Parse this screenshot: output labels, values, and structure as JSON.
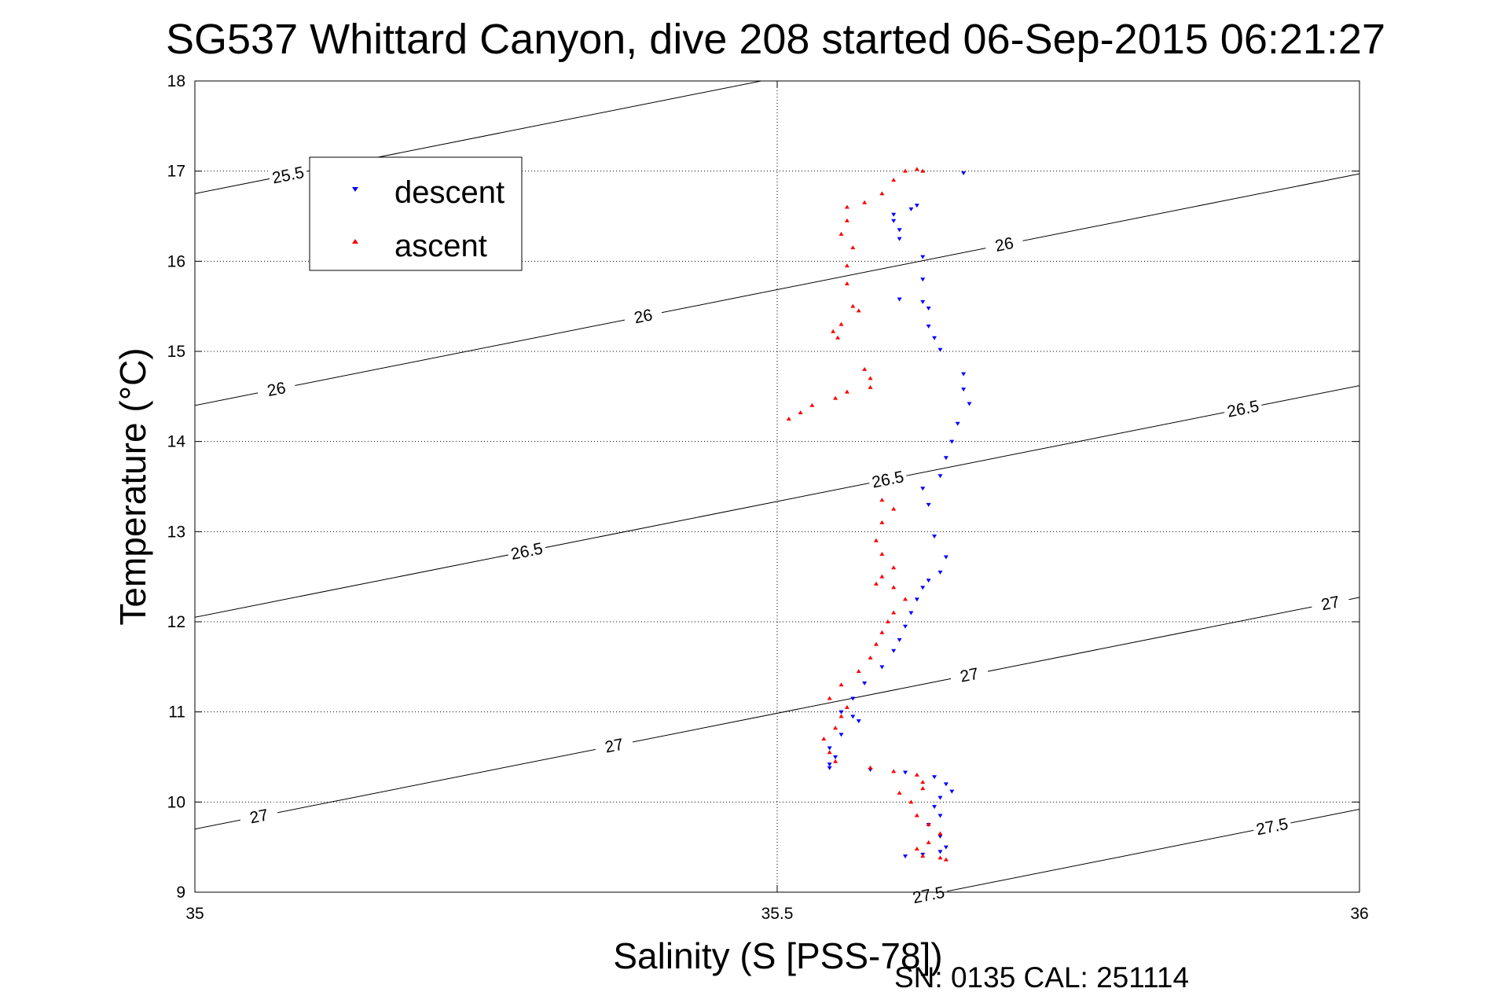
{
  "chart_data": {
    "type": "scatter",
    "title": "SG537 Whittard Canyon, dive 208 started 06-Sep-2015 06:21:27",
    "xlabel": "Salinity (S [PSS-78])",
    "ylabel": "Temperature (°C)",
    "xlim": [
      35,
      36
    ],
    "ylim": [
      9,
      18
    ],
    "x_ticks": [
      "35",
      "35.5",
      "36"
    ],
    "y_ticks": [
      "9",
      "10",
      "11",
      "12",
      "13",
      "14",
      "15",
      "16",
      "17",
      "18"
    ],
    "grid": true,
    "legend_position": "top-left",
    "footer": "SN: 0135  CAL: 251114",
    "contours": [
      {
        "level": "25.5",
        "labels": [
          {
            "text": "25.5",
            "x": 35.08
          }
        ]
      },
      {
        "level": "26",
        "labels": [
          {
            "text": "26",
            "x": 35.07
          },
          {
            "text": "26",
            "x": 35.385
          },
          {
            "text": "26",
            "x": 35.695
          }
        ]
      },
      {
        "level": "26.5",
        "labels": [
          {
            "text": "26.5",
            "x": 35.285
          },
          {
            "text": "26.5",
            "x": 35.595
          },
          {
            "text": "26.5",
            "x": 35.9
          }
        ]
      },
      {
        "level": "27",
        "labels": [
          {
            "text": "27",
            "x": 35.055
          },
          {
            "text": "27",
            "x": 35.36
          },
          {
            "text": "27",
            "x": 35.665
          },
          {
            "text": "27",
            "x": 35.975
          }
        ]
      },
      {
        "level": "27.5",
        "labels": [
          {
            "text": "27.5",
            "x": 35.63
          },
          {
            "text": "27.5",
            "x": 35.925
          }
        ]
      }
    ],
    "series": [
      {
        "name": "descent",
        "color": "#0000ff",
        "marker": "triangle-down",
        "points": [
          [
            35.66,
            16.98
          ],
          [
            35.62,
            16.62
          ],
          [
            35.615,
            16.58
          ],
          [
            35.6,
            16.52
          ],
          [
            35.6,
            16.45
          ],
          [
            35.605,
            16.35
          ],
          [
            35.605,
            16.25
          ],
          [
            35.625,
            16.05
          ],
          [
            35.625,
            15.8
          ],
          [
            35.605,
            15.58
          ],
          [
            35.625,
            15.55
          ],
          [
            35.63,
            15.48
          ],
          [
            35.63,
            15.28
          ],
          [
            35.635,
            15.15
          ],
          [
            35.64,
            15.02
          ],
          [
            35.66,
            14.75
          ],
          [
            35.66,
            14.58
          ],
          [
            35.665,
            14.42
          ],
          [
            35.655,
            14.2
          ],
          [
            35.65,
            14.0
          ],
          [
            35.645,
            13.82
          ],
          [
            35.64,
            13.62
          ],
          [
            35.625,
            13.48
          ],
          [
            35.63,
            13.3
          ],
          [
            35.635,
            12.95
          ],
          [
            35.645,
            12.72
          ],
          [
            35.64,
            12.55
          ],
          [
            35.63,
            12.46
          ],
          [
            35.625,
            12.38
          ],
          [
            35.62,
            12.25
          ],
          [
            35.615,
            12.1
          ],
          [
            35.61,
            11.95
          ],
          [
            35.605,
            11.8
          ],
          [
            35.6,
            11.68
          ],
          [
            35.59,
            11.5
          ],
          [
            35.575,
            11.32
          ],
          [
            35.565,
            11.15
          ],
          [
            35.555,
            11.0
          ],
          [
            35.565,
            10.95
          ],
          [
            35.57,
            10.9
          ],
          [
            35.555,
            10.75
          ],
          [
            35.545,
            10.6
          ],
          [
            35.55,
            10.5
          ],
          [
            35.545,
            10.42
          ],
          [
            35.545,
            10.38
          ],
          [
            35.58,
            10.36
          ],
          [
            35.61,
            10.33
          ],
          [
            35.635,
            10.28
          ],
          [
            35.645,
            10.2
          ],
          [
            35.65,
            10.12
          ],
          [
            35.64,
            10.05
          ],
          [
            35.635,
            9.95
          ],
          [
            35.64,
            9.85
          ],
          [
            35.63,
            9.75
          ],
          [
            35.64,
            9.62
          ],
          [
            35.645,
            9.5
          ],
          [
            35.64,
            9.45
          ],
          [
            35.625,
            9.42
          ],
          [
            35.61,
            9.4
          ]
        ]
      },
      {
        "name": "ascent",
        "color": "#ff0000",
        "marker": "triangle-up",
        "points": [
          [
            35.61,
            17.0
          ],
          [
            35.62,
            17.02
          ],
          [
            35.625,
            17.0
          ],
          [
            35.6,
            16.9
          ],
          [
            35.59,
            16.75
          ],
          [
            35.575,
            16.65
          ],
          [
            35.56,
            16.6
          ],
          [
            35.56,
            16.45
          ],
          [
            35.555,
            16.3
          ],
          [
            35.565,
            16.15
          ],
          [
            35.56,
            15.95
          ],
          [
            35.56,
            15.75
          ],
          [
            35.565,
            15.5
          ],
          [
            35.57,
            15.45
          ],
          [
            35.555,
            15.3
          ],
          [
            35.548,
            15.22
          ],
          [
            35.552,
            15.15
          ],
          [
            35.575,
            14.8
          ],
          [
            35.58,
            14.7
          ],
          [
            35.58,
            14.6
          ],
          [
            35.56,
            14.55
          ],
          [
            35.55,
            14.48
          ],
          [
            35.53,
            14.4
          ],
          [
            35.52,
            14.32
          ],
          [
            35.51,
            14.25
          ],
          [
            35.59,
            13.35
          ],
          [
            35.6,
            13.25
          ],
          [
            35.59,
            13.1
          ],
          [
            35.585,
            12.9
          ],
          [
            35.59,
            12.75
          ],
          [
            35.6,
            12.6
          ],
          [
            35.59,
            12.5
          ],
          [
            35.585,
            12.42
          ],
          [
            35.6,
            12.38
          ],
          [
            35.61,
            12.25
          ],
          [
            35.6,
            12.1
          ],
          [
            35.595,
            12.0
          ],
          [
            35.59,
            11.88
          ],
          [
            35.585,
            11.75
          ],
          [
            35.58,
            11.6
          ],
          [
            35.57,
            11.45
          ],
          [
            35.555,
            11.3
          ],
          [
            35.545,
            11.15
          ],
          [
            35.56,
            11.05
          ],
          [
            35.555,
            10.95
          ],
          [
            35.55,
            10.82
          ],
          [
            35.54,
            10.7
          ],
          [
            35.545,
            10.55
          ],
          [
            35.55,
            10.45
          ],
          [
            35.58,
            10.38
          ],
          [
            35.6,
            10.34
          ],
          [
            35.62,
            10.3
          ],
          [
            35.625,
            10.22
          ],
          [
            35.625,
            10.15
          ],
          [
            35.605,
            10.1
          ],
          [
            35.615,
            10.0
          ],
          [
            35.62,
            9.85
          ],
          [
            35.63,
            9.75
          ],
          [
            35.64,
            9.65
          ],
          [
            35.63,
            9.55
          ],
          [
            35.62,
            9.48
          ],
          [
            35.625,
            9.4
          ],
          [
            35.64,
            9.38
          ],
          [
            35.645,
            9.36
          ]
        ]
      }
    ]
  }
}
